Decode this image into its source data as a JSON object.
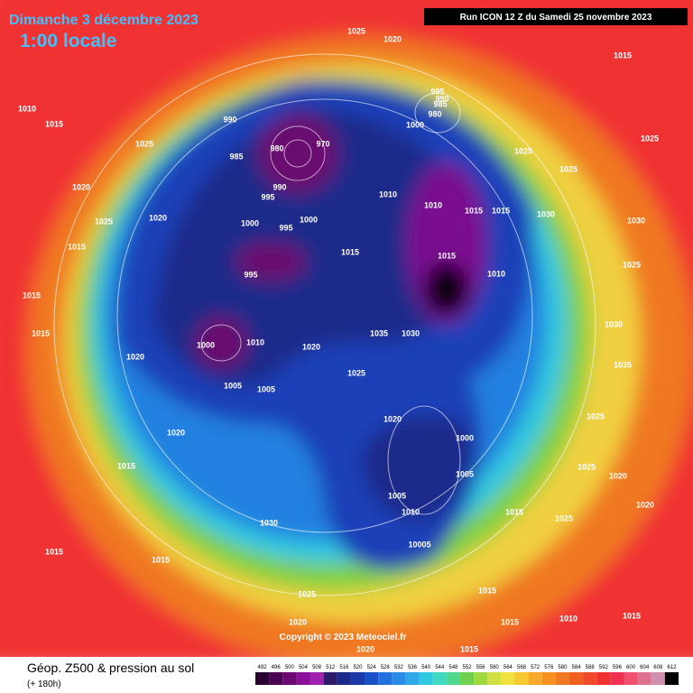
{
  "header": {
    "date": "Dimanche 3 décembre 2023",
    "time": "1:00 locale",
    "run": "Run ICON 12 Z du Samedi 25 novembre 2023"
  },
  "isobar_labels": [
    "1025",
    "1020",
    "1015",
    "1010",
    "1015",
    "1025",
    "995",
    "990",
    "985",
    "980",
    "1000",
    "990",
    "980",
    "970",
    "985",
    "990",
    "995",
    "1000",
    "1000",
    "995",
    "1010",
    "1010",
    "1015",
    "1015",
    "1020",
    "1025",
    "1020",
    "1015",
    "1015",
    "1015",
    "995",
    "1015",
    "1010",
    "1015",
    "1035",
    "1030",
    "1000",
    "1010",
    "1020",
    "1020",
    "1005",
    "1005",
    "1025",
    "1020",
    "1000",
    "1005",
    "1005",
    "1010",
    "10005",
    "1030",
    "1015",
    "1015",
    "1015",
    "1020",
    "1025",
    "1020",
    "1015",
    "1015",
    "1010",
    "1015",
    "1025",
    "1025",
    "1025",
    "1030",
    "1025",
    "1030",
    "1035",
    "1025",
    "1025",
    "1020",
    "1020",
    "1015",
    "1025",
    "1020",
    "1015",
    "1030"
  ],
  "copyright": "Copyright © 2023 Meteociel.fr",
  "legend": {
    "title": "Géop. Z500 & pression au sol",
    "subtitle": "(+ 180h)",
    "labels": [
      492,
      496,
      500,
      504,
      508,
      512,
      516,
      520,
      524,
      528,
      532,
      536,
      540,
      544,
      548,
      552,
      556,
      560,
      564,
      568,
      572,
      576,
      580,
      584,
      588,
      592,
      596,
      600,
      604,
      608,
      612
    ],
    "colors": [
      "#2a0030",
      "#4b0050",
      "#6a0a70",
      "#8a109a",
      "#a020b0",
      "#2a1a6a",
      "#1a2a8a",
      "#1a3aaa",
      "#1a50c8",
      "#2070e0",
      "#2a8ae8",
      "#30a8e8",
      "#30c8e0",
      "#40d8c0",
      "#50d890",
      "#70d050",
      "#a0d840",
      "#d0e040",
      "#f0e040",
      "#f8c830",
      "#f8a828",
      "#f89020",
      "#f07820",
      "#f06020",
      "#f04828",
      "#f03030",
      "#f03050",
      "#f05070",
      "#e07090",
      "#d090b0",
      "#000000"
    ]
  }
}
